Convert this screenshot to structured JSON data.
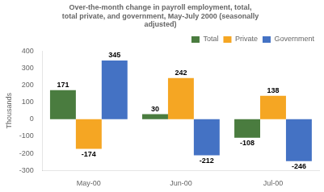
{
  "chart_data": {
    "type": "bar",
    "title": "Over-the-month change in payroll employment, total,\ntotal private, and government, May-July 2000 (seasonally\nadjusted)",
    "categories": [
      "May-00",
      "Jun-00",
      "Jul-00"
    ],
    "series": [
      {
        "name": "Total",
        "color": "#4a7c3f",
        "values": [
          171,
          30,
          -108
        ]
      },
      {
        "name": "Private",
        "color": "#f5a623",
        "values": [
          -174,
          242,
          138
        ]
      },
      {
        "name": "Government",
        "color": "#4472c4",
        "values": [
          345,
          -212,
          -246
        ]
      }
    ],
    "ylabel": "Thousands",
    "ylim": [
      -300,
      400
    ],
    "yticks": [
      -300,
      -200,
      -100,
      0,
      100,
      200,
      300,
      400
    ],
    "grid": false,
    "legend": "upper right",
    "data_labels": true
  }
}
